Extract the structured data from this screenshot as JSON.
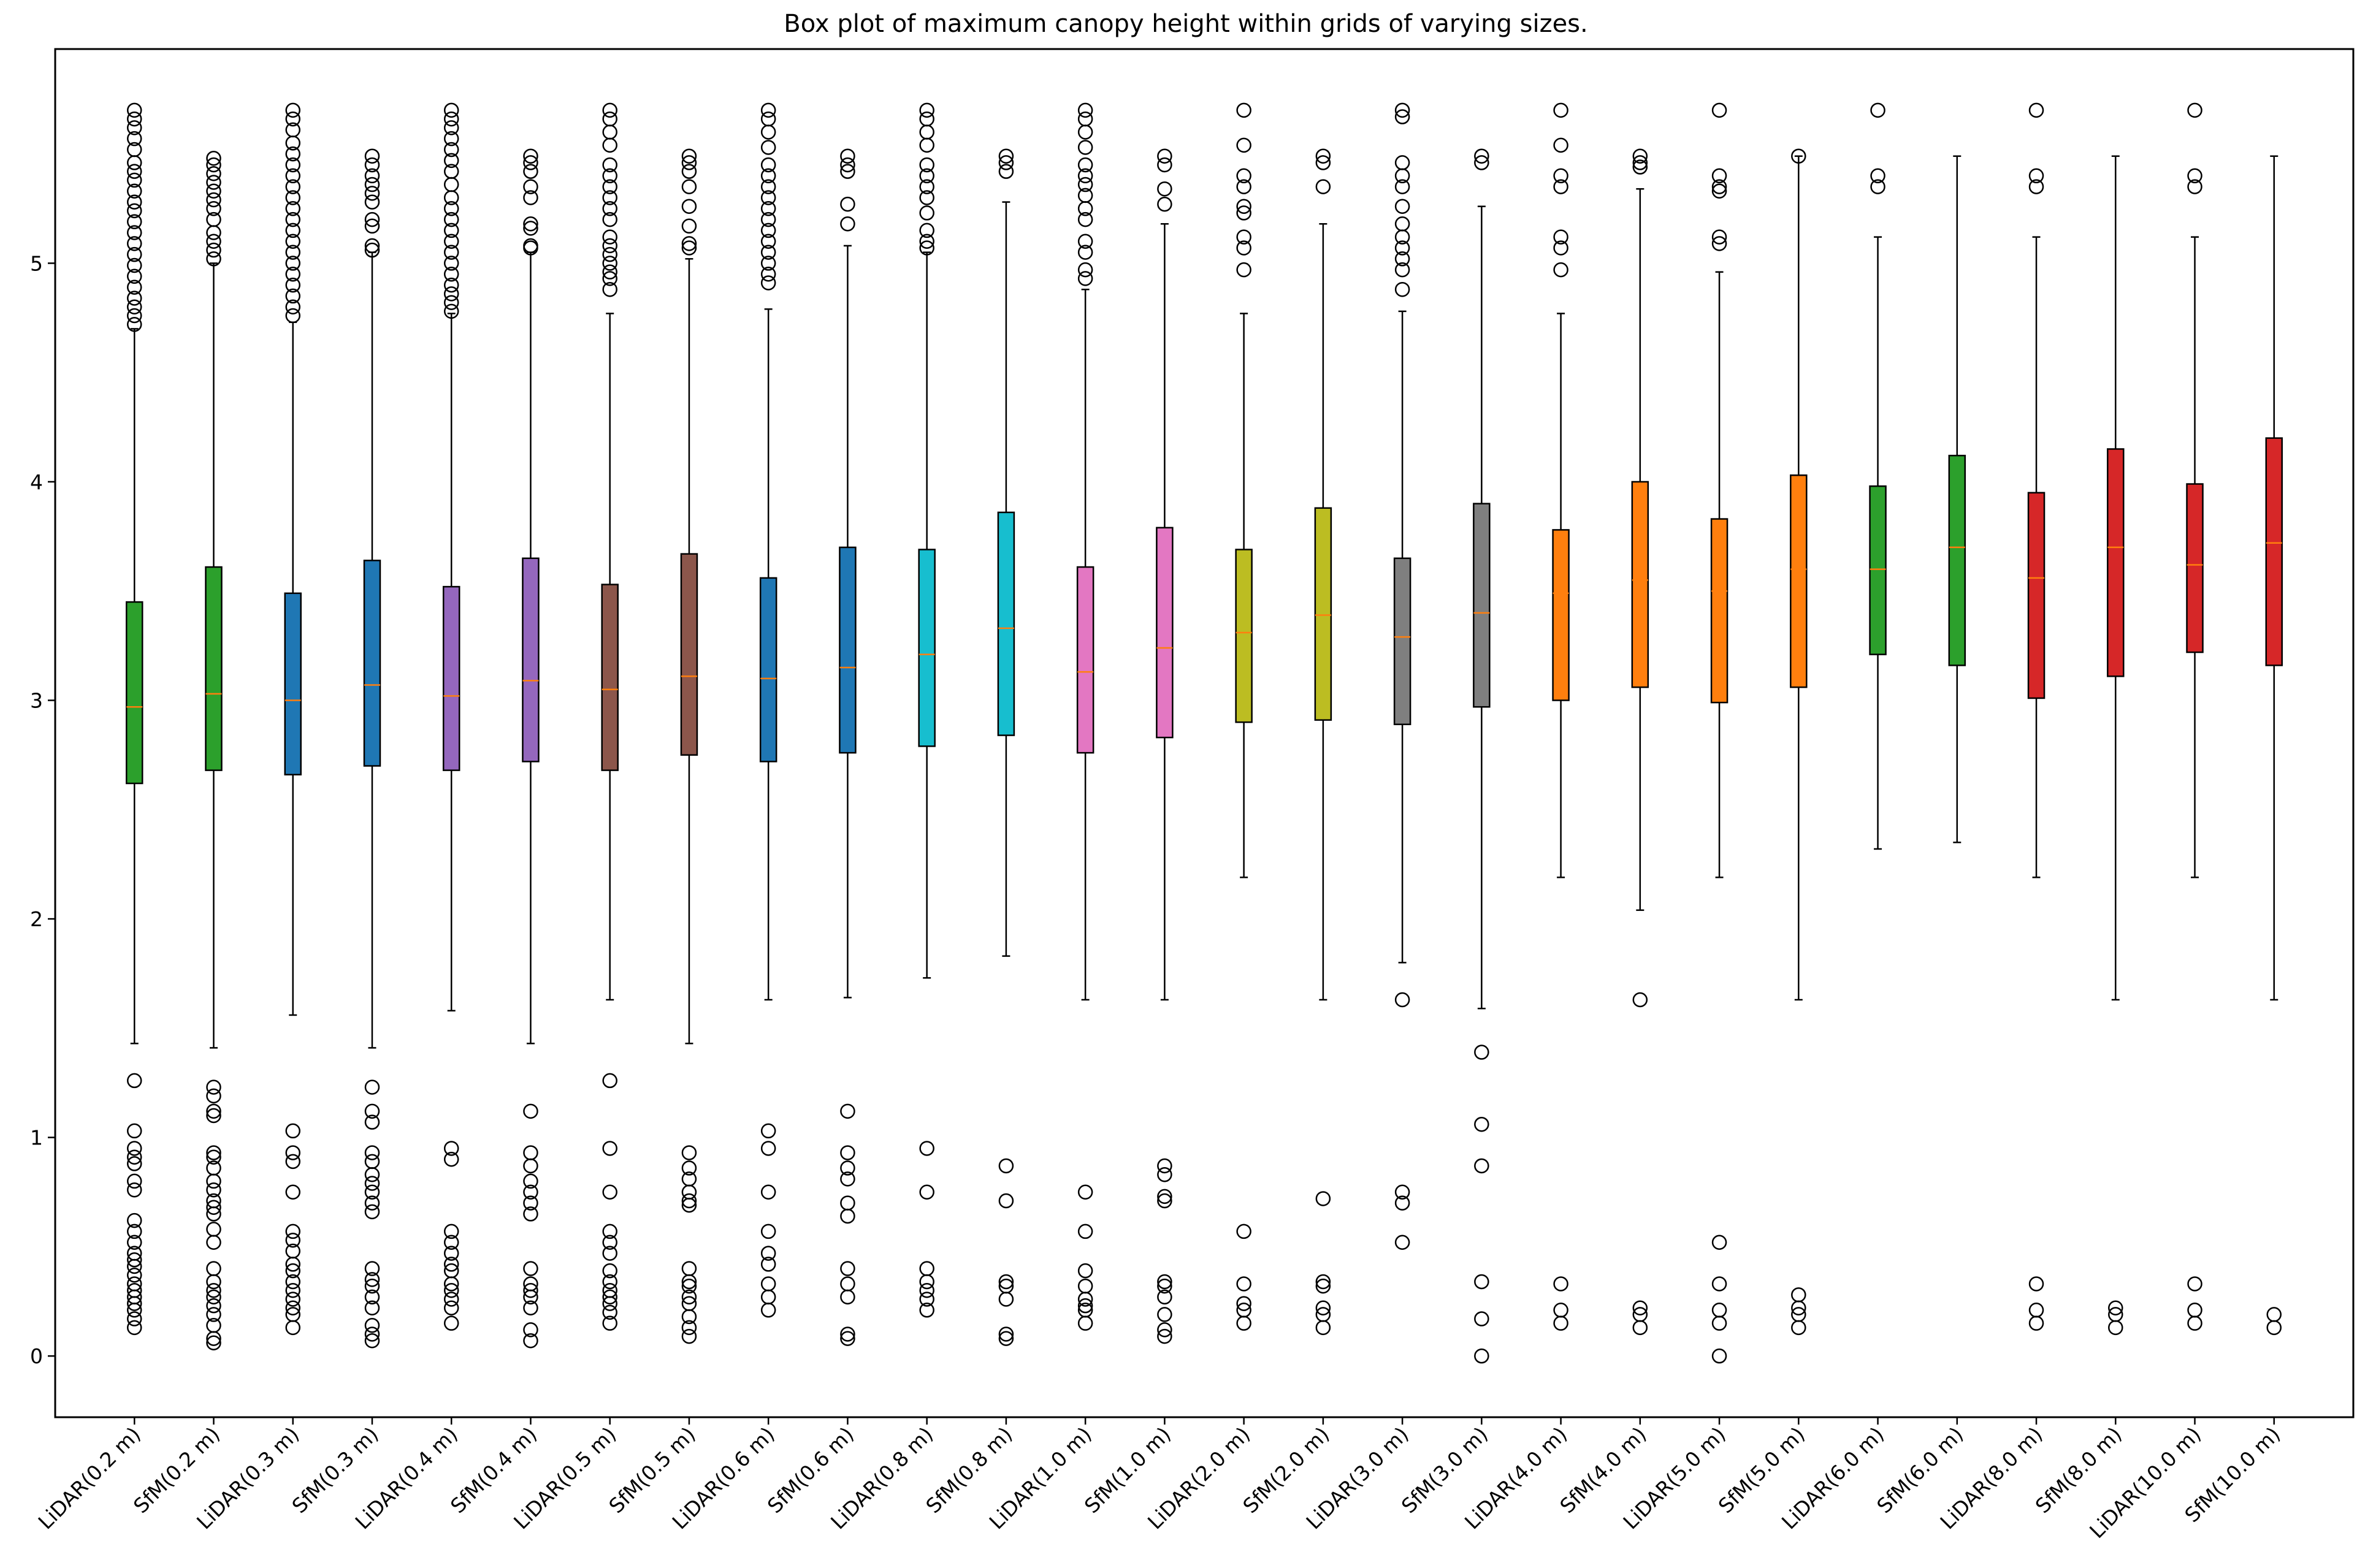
{
  "chart_data": {
    "type": "box",
    "title": "Box plot of maximum canopy height within grids of varying sizes.",
    "xlabel": "",
    "ylabel": "",
    "ylim": [
      -0.28,
      5.98
    ],
    "yticks": [
      0,
      1,
      2,
      3,
      4,
      5
    ],
    "grid": false,
    "legend": "none",
    "categories": [
      "LiDAR(0.2 m)",
      "SfM(0.2 m)",
      "LiDAR(0.3 m)",
      "SfM(0.3 m)",
      "LiDAR(0.4 m)",
      "SfM(0.4 m)",
      "LiDAR(0.5 m)",
      "SfM(0.5 m)",
      "LiDAR(0.6 m)",
      "SfM(0.6 m)",
      "LiDAR(0.8 m)",
      "SfM(0.8 m)",
      "LiDAR(1.0 m)",
      "SfM(1.0 m)",
      "LiDAR(2.0 m)",
      "SfM(2.0 m)",
      "LiDAR(3.0 m)",
      "SfM(3.0 m)",
      "LiDAR(4.0 m)",
      "SfM(4.0 m)",
      "LiDAR(5.0 m)",
      "SfM(5.0 m)",
      "LiDAR(6.0 m)",
      "SfM(6.0 m)",
      "LiDAR(8.0 m)",
      "SfM(8.0 m)",
      "LiDAR(10.0 m)",
      "SfM(10.0 m)"
    ],
    "boxes": [
      {
        "label": "LiDAR(0.2 m)",
        "color": "#2ca02c",
        "whisker_low": 1.43,
        "q1": 2.62,
        "median": 2.97,
        "q3": 3.45,
        "whisker_high": 4.7,
        "outliers": [
          5.7,
          5.66,
          5.62,
          5.57,
          5.52,
          5.46,
          5.42,
          5.38,
          5.33,
          5.28,
          5.24,
          5.19,
          5.14,
          5.09,
          5.04,
          4.99,
          4.94,
          4.89,
          4.84,
          4.8,
          4.76,
          4.72,
          1.26,
          1.03,
          0.95,
          0.91,
          0.88,
          0.8,
          0.76,
          0.62,
          0.57,
          0.52,
          0.47,
          0.44,
          0.41,
          0.37,
          0.33,
          0.3,
          0.27,
          0.24,
          0.21,
          0.17,
          0.13
        ]
      },
      {
        "label": "SfM(0.2 m)",
        "color": "#2ca02c",
        "whisker_low": 1.41,
        "q1": 2.68,
        "median": 3.03,
        "q3": 3.61,
        "whisker_high": 5.0,
        "outliers": [
          5.48,
          5.45,
          5.41,
          5.37,
          5.33,
          5.29,
          5.25,
          5.2,
          5.14,
          5.1,
          5.06,
          5.02,
          1.23,
          1.19,
          1.12,
          1.1,
          0.93,
          0.91,
          0.86,
          0.8,
          0.76,
          0.71,
          0.68,
          0.65,
          0.58,
          0.52,
          0.4,
          0.34,
          0.3,
          0.27,
          0.23,
          0.19,
          0.14,
          0.08,
          0.06
        ]
      },
      {
        "label": "LiDAR(0.3 m)",
        "color": "#1f77b4",
        "whisker_low": 1.56,
        "q1": 2.66,
        "median": 3.0,
        "q3": 3.49,
        "whisker_high": 4.73,
        "outliers": [
          5.7,
          5.66,
          5.61,
          5.55,
          5.5,
          5.45,
          5.4,
          5.35,
          5.3,
          5.25,
          5.2,
          5.15,
          5.1,
          5.05,
          5.0,
          4.95,
          4.9,
          4.85,
          4.8,
          4.76,
          1.03,
          0.93,
          0.89,
          0.75,
          0.57,
          0.53,
          0.48,
          0.42,
          0.39,
          0.34,
          0.3,
          0.26,
          0.22,
          0.19,
          0.13
        ]
      },
      {
        "label": "SfM(0.3 m)",
        "color": "#1f77b4",
        "whisker_low": 1.41,
        "q1": 2.7,
        "median": 3.07,
        "q3": 3.64,
        "whisker_high": 5.05,
        "outliers": [
          5.49,
          5.45,
          5.4,
          5.36,
          5.32,
          5.28,
          5.2,
          5.17,
          5.08,
          5.06,
          1.23,
          1.12,
          1.07,
          0.93,
          0.89,
          0.83,
          0.79,
          0.75,
          0.7,
          0.66,
          0.4,
          0.35,
          0.32,
          0.27,
          0.22,
          0.14,
          0.1,
          0.07
        ]
      },
      {
        "label": "LiDAR(0.4 m)",
        "color": "#9467bd",
        "whisker_low": 1.58,
        "q1": 2.68,
        "median": 3.02,
        "q3": 3.52,
        "whisker_high": 4.77,
        "outliers": [
          5.7,
          5.66,
          5.62,
          5.57,
          5.52,
          5.47,
          5.42,
          5.36,
          5.3,
          5.25,
          5.2,
          5.15,
          5.1,
          5.05,
          5.0,
          4.95,
          4.9,
          4.86,
          4.82,
          4.78,
          0.95,
          0.9,
          0.57,
          0.52,
          0.47,
          0.42,
          0.39,
          0.33,
          0.3,
          0.26,
          0.22,
          0.15
        ]
      },
      {
        "label": "SfM(0.4 m)",
        "color": "#9467bd",
        "whisker_low": 1.43,
        "q1": 2.72,
        "median": 3.09,
        "q3": 3.65,
        "whisker_high": 5.05,
        "outliers": [
          5.49,
          5.46,
          5.42,
          5.35,
          5.3,
          5.18,
          5.16,
          5.08,
          5.07,
          1.12,
          0.93,
          0.87,
          0.8,
          0.75,
          0.7,
          0.65,
          0.4,
          0.33,
          0.3,
          0.27,
          0.22,
          0.12,
          0.07
        ]
      },
      {
        "label": "LiDAR(0.5 m)",
        "color": "#8c564b",
        "whisker_low": 1.63,
        "q1": 2.68,
        "median": 3.05,
        "q3": 3.53,
        "whisker_high": 4.77,
        "outliers": [
          5.7,
          5.66,
          5.6,
          5.54,
          5.45,
          5.4,
          5.35,
          5.3,
          5.25,
          5.2,
          5.12,
          5.08,
          5.04,
          5.0,
          4.96,
          4.93,
          4.88,
          1.26,
          0.95,
          0.75,
          0.57,
          0.52,
          0.47,
          0.39,
          0.34,
          0.3,
          0.27,
          0.24,
          0.2,
          0.15
        ]
      },
      {
        "label": "SfM(0.5 m)",
        "color": "#8c564b",
        "whisker_low": 1.43,
        "q1": 2.75,
        "median": 3.11,
        "q3": 3.67,
        "whisker_high": 5.02,
        "outliers": [
          5.49,
          5.46,
          5.42,
          5.35,
          5.26,
          5.17,
          5.09,
          5.07,
          0.93,
          0.86,
          0.81,
          0.75,
          0.71,
          0.69,
          0.4,
          0.34,
          0.32,
          0.27,
          0.24,
          0.18,
          0.13,
          0.09
        ]
      },
      {
        "label": "LiDAR(0.6 m)",
        "color": "#1f77b4",
        "whisker_low": 1.63,
        "q1": 2.72,
        "median": 3.1,
        "q3": 3.56,
        "whisker_high": 4.79,
        "outliers": [
          5.7,
          5.66,
          5.6,
          5.53,
          5.45,
          5.4,
          5.35,
          5.3,
          5.25,
          5.2,
          5.15,
          5.1,
          5.05,
          5.0,
          4.95,
          4.91,
          1.03,
          0.95,
          0.75,
          0.57,
          0.47,
          0.42,
          0.33,
          0.27,
          0.21
        ]
      },
      {
        "label": "SfM(0.6 m)",
        "color": "#1f77b4",
        "whisker_low": 1.64,
        "q1": 2.76,
        "median": 3.15,
        "q3": 3.7,
        "whisker_high": 5.08,
        "outliers": [
          5.49,
          5.45,
          5.42,
          5.27,
          5.18,
          1.12,
          0.93,
          0.86,
          0.81,
          0.7,
          0.64,
          0.4,
          0.33,
          0.27,
          0.1,
          0.08
        ]
      },
      {
        "label": "LiDAR(0.8 m)",
        "color": "#17becf",
        "whisker_low": 1.73,
        "q1": 2.79,
        "median": 3.21,
        "q3": 3.69,
        "whisker_high": 5.05,
        "outliers": [
          5.7,
          5.66,
          5.6,
          5.54,
          5.45,
          5.4,
          5.35,
          5.3,
          5.23,
          5.15,
          5.1,
          5.07,
          0.95,
          0.75,
          0.4,
          0.34,
          0.3,
          0.26,
          0.21
        ]
      },
      {
        "label": "SfM(0.8 m)",
        "color": "#17becf",
        "whisker_low": 1.83,
        "q1": 2.84,
        "median": 3.33,
        "q3": 3.86,
        "whisker_high": 5.28,
        "outliers": [
          5.49,
          5.46,
          5.42,
          0.87,
          0.71,
          0.34,
          0.32,
          0.26,
          0.1,
          0.08
        ]
      },
      {
        "label": "LiDAR(1.0 m)",
        "color": "#e377c2",
        "whisker_low": 1.63,
        "q1": 2.76,
        "median": 3.13,
        "q3": 3.61,
        "whisker_high": 4.88,
        "outliers": [
          5.7,
          5.66,
          5.6,
          5.53,
          5.45,
          5.4,
          5.36,
          5.31,
          5.25,
          5.2,
          5.1,
          5.05,
          4.97,
          4.93,
          0.75,
          0.57,
          0.39,
          0.32,
          0.26,
          0.23,
          0.21,
          0.15
        ]
      },
      {
        "label": "SfM(1.0 m)",
        "color": "#e377c2",
        "whisker_low": 1.63,
        "q1": 2.83,
        "median": 3.24,
        "q3": 3.79,
        "whisker_high": 5.18,
        "outliers": [
          5.49,
          5.45,
          5.34,
          5.27,
          0.87,
          0.83,
          0.73,
          0.71,
          0.34,
          0.32,
          0.27,
          0.19,
          0.12,
          0.09
        ]
      },
      {
        "label": "LiDAR(2.0 m)",
        "color": "#bcbd22",
        "whisker_low": 2.19,
        "q1": 2.9,
        "median": 3.31,
        "q3": 3.69,
        "whisker_high": 4.77,
        "outliers": [
          5.7,
          5.54,
          5.4,
          5.35,
          5.26,
          5.23,
          5.12,
          5.07,
          4.97,
          0.57,
          0.33,
          0.24,
          0.21,
          0.15
        ]
      },
      {
        "label": "SfM(2.0 m)",
        "color": "#bcbd22",
        "whisker_low": 1.63,
        "q1": 2.91,
        "median": 3.39,
        "q3": 3.88,
        "whisker_high": 5.18,
        "outliers": [
          5.49,
          5.46,
          5.35,
          0.72,
          0.34,
          0.32,
          0.22,
          0.19,
          0.13
        ]
      },
      {
        "label": "LiDAR(3.0 m)",
        "color": "#7f7f7f",
        "whisker_low": 1.8,
        "q1": 2.89,
        "median": 3.29,
        "q3": 3.65,
        "whisker_high": 4.78,
        "outliers": [
          5.7,
          5.67,
          5.46,
          5.4,
          5.35,
          5.26,
          5.18,
          5.12,
          5.07,
          5.02,
          4.97,
          4.88,
          1.63,
          0.75,
          0.7,
          0.52
        ]
      },
      {
        "label": "SfM(3.0 m)",
        "color": "#7f7f7f",
        "whisker_low": 1.59,
        "q1": 2.97,
        "median": 3.4,
        "q3": 3.9,
        "whisker_high": 5.26,
        "outliers": [
          5.49,
          5.46,
          1.39,
          1.06,
          0.87,
          0.34,
          0.17,
          0.0
        ]
      },
      {
        "label": "LiDAR(4.0 m)",
        "color": "#ff7f0e",
        "whisker_low": 2.19,
        "q1": 3.0,
        "median": 3.49,
        "q3": 3.78,
        "whisker_high": 4.77,
        "outliers": [
          5.7,
          5.54,
          5.4,
          5.35,
          5.12,
          5.07,
          4.97,
          0.33,
          0.21,
          0.15
        ]
      },
      {
        "label": "SfM(4.0 m)",
        "color": "#ff7f0e",
        "whisker_low": 2.04,
        "q1": 3.06,
        "median": 3.55,
        "q3": 4.0,
        "whisker_high": 5.34,
        "outliers": [
          5.49,
          5.46,
          5.44,
          1.63,
          0.22,
          0.19,
          0.13
        ]
      },
      {
        "label": "LiDAR(5.0 m)",
        "color": "#ff7f0e",
        "whisker_low": 2.19,
        "q1": 2.99,
        "median": 3.5,
        "q3": 3.83,
        "whisker_high": 4.96,
        "outliers": [
          5.7,
          5.4,
          5.35,
          5.33,
          5.12,
          5.09,
          0.52,
          0.33,
          0.21,
          0.15,
          0.0
        ]
      },
      {
        "label": "SfM(5.0 m)",
        "color": "#ff7f0e",
        "whisker_low": 1.63,
        "q1": 3.06,
        "median": 3.6,
        "q3": 4.03,
        "whisker_high": 5.49,
        "outliers": [
          5.49,
          0.28,
          0.22,
          0.19,
          0.13
        ]
      },
      {
        "label": "LiDAR(6.0 m)",
        "color": "#2ca02c",
        "whisker_low": 2.32,
        "q1": 3.21,
        "median": 3.6,
        "q3": 3.98,
        "whisker_high": 5.12,
        "outliers": [
          5.7,
          5.4,
          5.35
        ]
      },
      {
        "label": "SfM(6.0 m)",
        "color": "#2ca02c",
        "whisker_low": 2.35,
        "q1": 3.16,
        "median": 3.7,
        "q3": 4.12,
        "whisker_high": 5.49,
        "outliers": []
      },
      {
        "label": "LiDAR(8.0 m)",
        "color": "#d62728",
        "whisker_low": 2.19,
        "q1": 3.01,
        "median": 3.56,
        "q3": 3.95,
        "whisker_high": 5.12,
        "outliers": [
          5.7,
          5.4,
          5.35,
          0.33,
          0.21,
          0.15
        ]
      },
      {
        "label": "SfM(8.0 m)",
        "color": "#d62728",
        "whisker_low": 1.63,
        "q1": 3.11,
        "median": 3.7,
        "q3": 4.15,
        "whisker_high": 5.49,
        "outliers": [
          0.22,
          0.19,
          0.13
        ]
      },
      {
        "label": "LiDAR(10.0 m)",
        "color": "#d62728",
        "whisker_low": 2.19,
        "q1": 3.22,
        "median": 3.62,
        "q3": 3.99,
        "whisker_high": 5.12,
        "outliers": [
          5.7,
          5.4,
          5.35,
          0.33,
          0.21,
          0.15
        ]
      },
      {
        "label": "SfM(10.0 m)",
        "color": "#d62728",
        "whisker_low": 1.63,
        "q1": 3.16,
        "median": 3.72,
        "q3": 4.2,
        "whisker_high": 5.49,
        "outliers": [
          0.19,
          0.13
        ]
      }
    ]
  }
}
